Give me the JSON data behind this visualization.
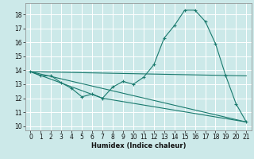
{
  "title": "",
  "xlabel": "Humidex (Indice chaleur)",
  "ylabel": "",
  "xlim": [
    -0.5,
    21.5
  ],
  "ylim": [
    9.7,
    18.8
  ],
  "yticks": [
    10,
    11,
    12,
    13,
    14,
    15,
    16,
    17,
    18
  ],
  "xticks": [
    0,
    1,
    2,
    3,
    4,
    5,
    6,
    7,
    8,
    9,
    10,
    11,
    12,
    13,
    14,
    15,
    16,
    17,
    18,
    19,
    20,
    21
  ],
  "background_color": "#cce9e9",
  "grid_color": "#ffffff",
  "line_color": "#1a7a6e",
  "line1_x": [
    0,
    1,
    2,
    3,
    4,
    5,
    6,
    7,
    8,
    9,
    10,
    11,
    12,
    13,
    14,
    15,
    16,
    17,
    18,
    19,
    20,
    21
  ],
  "line1_y": [
    13.9,
    13.6,
    13.6,
    13.1,
    12.7,
    12.1,
    12.3,
    12.0,
    12.8,
    13.2,
    13.0,
    13.5,
    14.4,
    16.3,
    17.2,
    18.3,
    18.3,
    17.5,
    15.9,
    13.6,
    11.6,
    10.3
  ],
  "line2_x": [
    0,
    21
  ],
  "line2_y": [
    13.9,
    13.6
  ],
  "line3_x": [
    0,
    21
  ],
  "line3_y": [
    13.9,
    10.3
  ],
  "line4_x": [
    0,
    7,
    21
  ],
  "line4_y": [
    13.9,
    12.0,
    10.3
  ]
}
